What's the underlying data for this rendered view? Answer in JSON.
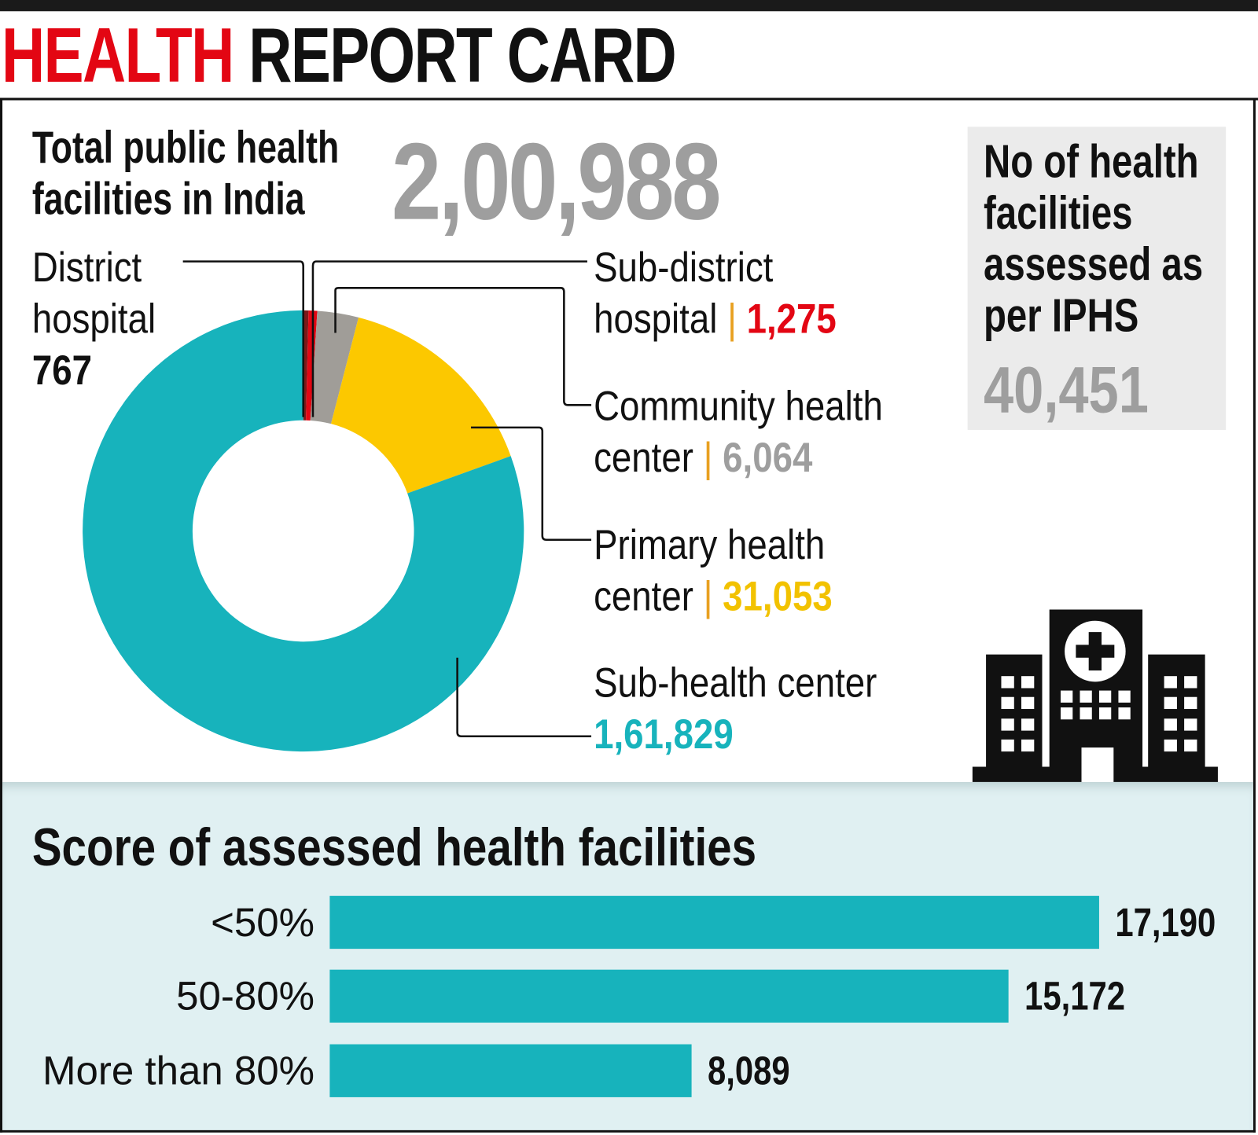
{
  "title": {
    "part1": "HEALTH",
    "part2": "REPORT CARD",
    "part1_color": "#e30613"
  },
  "total": {
    "label_line1": "Total public health",
    "label_line2": "facilities in India",
    "value": "2,00,988"
  },
  "assessed": {
    "line1": "No of health",
    "line2": "facilities",
    "line3": "assessed as",
    "line4": "per IPHS",
    "value": "40,451"
  },
  "chart_data": [
    {
      "type": "pie",
      "donut": true,
      "slices": [
        {
          "name_line1": "District",
          "name_line2": "hospital",
          "label": "767",
          "value": 767,
          "color": "#7a1a1a"
        },
        {
          "name_line1": "Sub-district",
          "name_line2": "hospital",
          "label": "1,275",
          "value": 1275,
          "color": "#e30613"
        },
        {
          "name_line1": "Community health",
          "name_line2": "center",
          "label": "6,064",
          "value": 6064,
          "color": "#a09d98"
        },
        {
          "name_line1": "Primary health",
          "name_line2": "center",
          "label": "31,053",
          "value": 31053,
          "color": "#fcc800"
        },
        {
          "name_line1": "Sub-health center",
          "name_line2": "",
          "label": "1,61,829",
          "value": 161829,
          "color": "#17b3bc"
        }
      ]
    },
    {
      "type": "bar",
      "orientation": "horizontal",
      "title": "Score of assessed health facilities",
      "categories": [
        "<50%",
        "50-80%",
        "More than 80%"
      ],
      "values": [
        17190,
        15172,
        8089
      ],
      "value_labels": [
        "17,190",
        "15,172",
        "8,089"
      ],
      "color": "#17b3bc"
    }
  ],
  "icon": "hospital-building-icon"
}
